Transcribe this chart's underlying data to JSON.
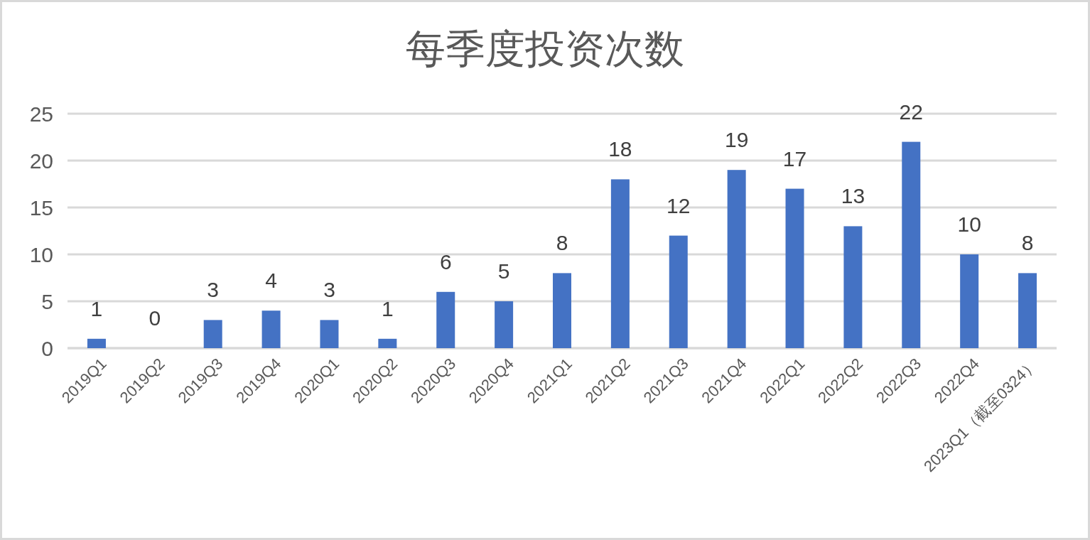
{
  "chart_data": {
    "type": "bar",
    "title": "每季度投资次数",
    "categories": [
      "2019Q1",
      "2019Q2",
      "2019Q3",
      "2019Q4",
      "2020Q1",
      "2020Q2",
      "2020Q3",
      "2020Q4",
      "2021Q1",
      "2021Q2",
      "2021Q3",
      "2021Q4",
      "2022Q1",
      "2022Q2",
      "2022Q3",
      "2022Q4",
      "2023Q1（截至0324）"
    ],
    "values": [
      1,
      0,
      3,
      4,
      3,
      1,
      6,
      5,
      8,
      18,
      12,
      19,
      17,
      13,
      22,
      10,
      8
    ],
    "color": "#4472c4",
    "ylim": [
      0,
      25
    ],
    "yticks": [
      0,
      5,
      10,
      15,
      20,
      25
    ],
    "grid": "y",
    "data_labels": true
  }
}
